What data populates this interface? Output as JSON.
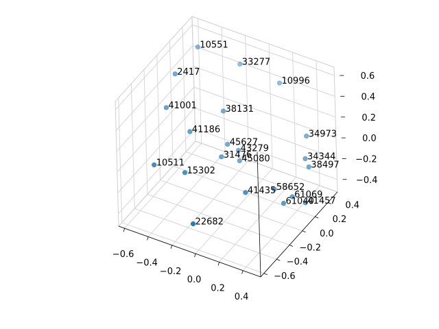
{
  "chart_data": {
    "type": "scatter",
    "projection": "3d",
    "title": "",
    "xlabel": "",
    "ylabel": "",
    "zlabel": "",
    "grid": true,
    "marker_color": "#1f77b4",
    "pane_color": "#f2f2f2",
    "xlim": [
      -0.65,
      0.55
    ],
    "ylim": [
      -0.65,
      0.55
    ],
    "zlim": [
      -0.52,
      0.68
    ],
    "x_ticks": [
      -0.6,
      -0.4,
      -0.2,
      0.0,
      0.2,
      0.4
    ],
    "x_tick_labels": [
      "−0.6",
      "−0.4",
      "−0.2",
      "0.0",
      "0.2",
      "0.4"
    ],
    "y_ticks": [
      -0.6,
      -0.4,
      -0.2,
      0.0,
      0.2,
      0.4
    ],
    "y_tick_labels": [
      "−0.6",
      "−0.4",
      "−0.2",
      "0.0",
      "0.2",
      "0.4"
    ],
    "z_ticks": [
      -0.4,
      -0.2,
      0.0,
      0.2,
      0.4,
      0.6
    ],
    "z_tick_labels": [
      "−0.4",
      "−0.2",
      "0.0",
      "0.2",
      "0.4",
      "0.6"
    ],
    "points": [
      {
        "label": "10551",
        "x": -0.53,
        "y": 0.41,
        "z": 0.53
      },
      {
        "label": "33277",
        "x": -0.23,
        "y": 0.51,
        "z": 0.42
      },
      {
        "label": "10996",
        "x": 0.12,
        "y": 0.48,
        "z": 0.4
      },
      {
        "label": "2417",
        "x": -0.6,
        "y": 0.18,
        "z": 0.4
      },
      {
        "label": "34973",
        "x": 0.45,
        "y": 0.28,
        "z": 0.16
      },
      {
        "label": "41001",
        "x": -0.61,
        "y": 0.05,
        "z": 0.16
      },
      {
        "label": "38131",
        "x": -0.22,
        "y": 0.22,
        "z": 0.17
      },
      {
        "label": "34344",
        "x": 0.48,
        "y": 0.2,
        "z": 0.01
      },
      {
        "label": "38497",
        "x": 0.52,
        "y": 0.18,
        "z": -0.04
      },
      {
        "label": "41186",
        "x": -0.42,
        "y": 0.06,
        "z": 0.0
      },
      {
        "label": "45627",
        "x": -0.18,
        "y": 0.2,
        "z": -0.12
      },
      {
        "label": "43279",
        "x": -0.1,
        "y": 0.22,
        "z": -0.16
      },
      {
        "label": "31476",
        "x": -0.19,
        "y": 0.12,
        "z": -0.19
      },
      {
        "label": "45080",
        "x": -0.07,
        "y": 0.18,
        "z": -0.22
      },
      {
        "label": "10511",
        "x": -0.53,
        "y": -0.3,
        "z": -0.12
      },
      {
        "label": "15302",
        "x": -0.32,
        "y": -0.21,
        "z": -0.17
      },
      {
        "label": "58652",
        "x": 0.31,
        "y": 0.02,
        "z": -0.23
      },
      {
        "label": "61069",
        "x": 0.45,
        "y": 0.04,
        "z": -0.26
      },
      {
        "label": "41457",
        "x": 0.55,
        "y": 0.06,
        "z": -0.29
      },
      {
        "label": "41435",
        "x": 0.17,
        "y": -0.17,
        "z": -0.19
      },
      {
        "label": "61040",
        "x": 0.42,
        "y": -0.04,
        "z": -0.28
      },
      {
        "label": "22682",
        "x": -0.07,
        "y": -0.55,
        "z": -0.33
      }
    ]
  }
}
